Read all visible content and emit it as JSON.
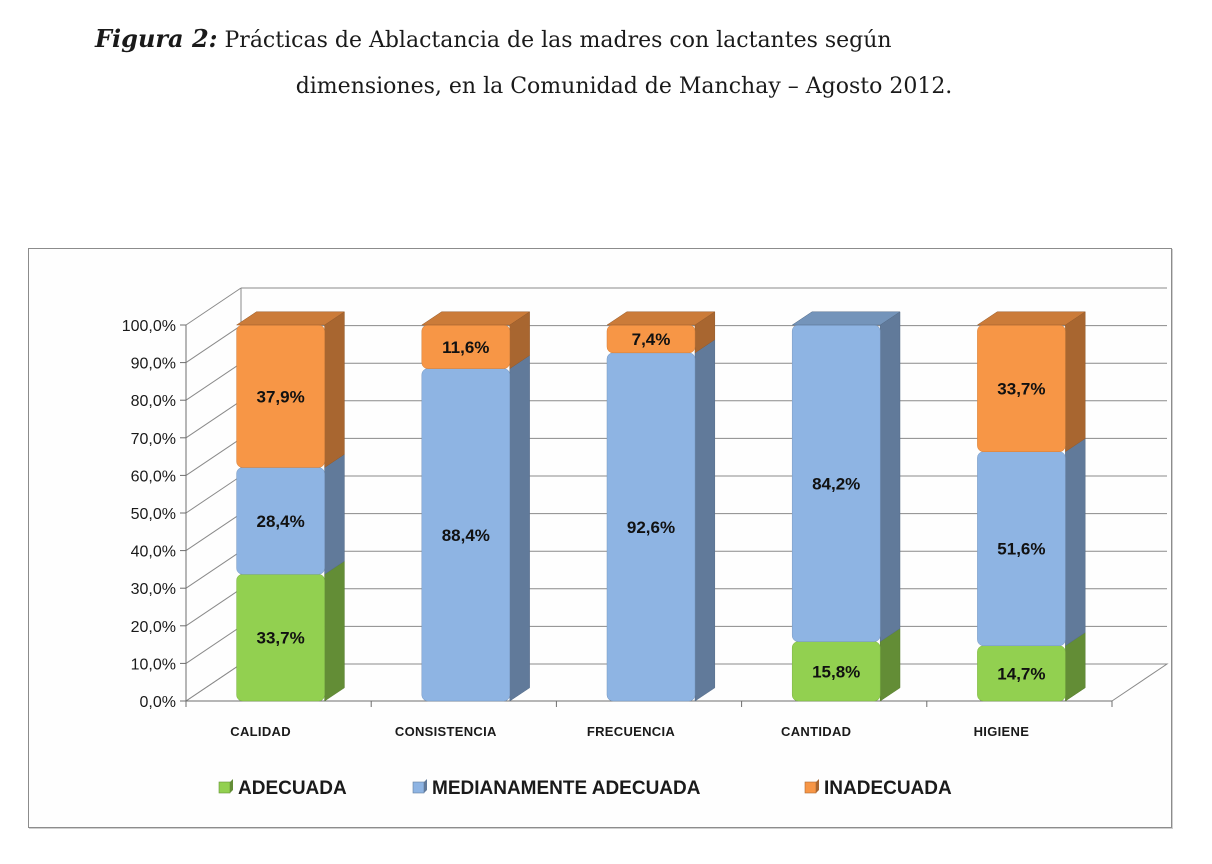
{
  "caption": {
    "figure_label": "Figura 2:",
    "line1": "Prácticas de Ablactancia de las madres con lactantes según",
    "line2": "dimensiones, en la Comunidad de Manchay – Agosto 2012."
  },
  "chart_data": {
    "type": "bar",
    "stacked": true,
    "three_d": true,
    "categories": [
      "CALIDAD",
      "CONSISTENCIA",
      "FRECUENCIA",
      "CANTIDAD",
      "HIGIENE"
    ],
    "series": [
      {
        "name": "ADECUADA",
        "color": "#92D050",
        "values": [
          33.7,
          null,
          null,
          15.8,
          14.7
        ],
        "labels": [
          "33,7%",
          "",
          "",
          "15,8%",
          "14,7%"
        ]
      },
      {
        "name": "MEDIANAMENTE ADECUADA",
        "color": "#8EB4E3",
        "values": [
          28.4,
          88.4,
          92.6,
          84.2,
          51.6
        ],
        "labels": [
          "28,4%",
          "88,4%",
          "92,6%",
          "84,2%",
          "51,6%"
        ]
      },
      {
        "name": "INADECUADA",
        "color": "#F79646",
        "values": [
          37.9,
          11.6,
          7.4,
          null,
          33.7
        ],
        "labels": [
          "37,9%",
          "11,6%",
          "7,4%",
          "",
          "33,7%"
        ]
      }
    ],
    "ylim": [
      0,
      100
    ],
    "yticks": [
      "0,0%",
      "10,0%",
      "20,0%",
      "30,0%",
      "40,0%",
      "50,0%",
      "60,0%",
      "70,0%",
      "80,0%",
      "90,0%",
      "100,0%"
    ],
    "grid": true,
    "legend_position": "bottom"
  }
}
